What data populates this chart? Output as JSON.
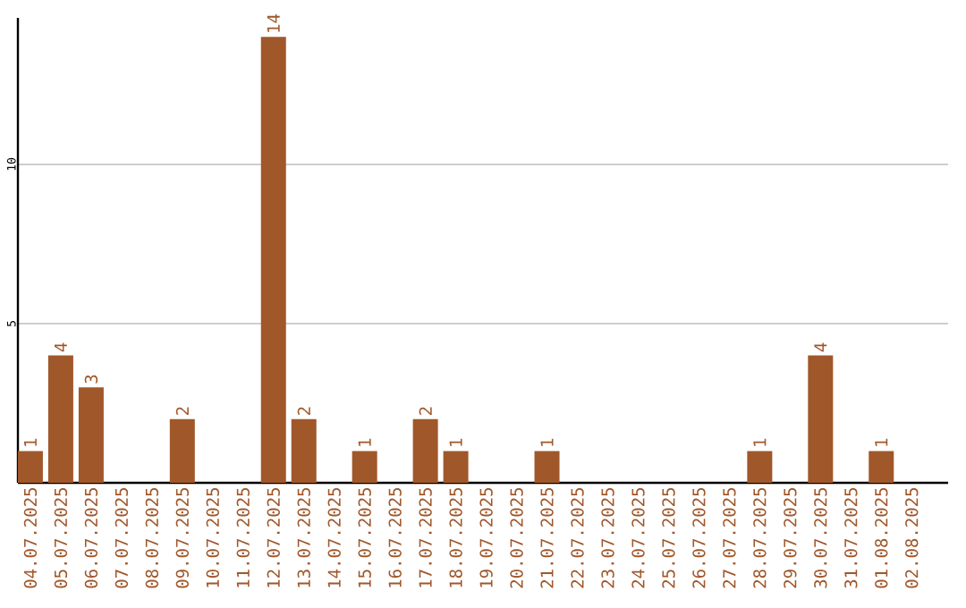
{
  "chart_data": {
    "type": "bar",
    "categories": [
      "04.07.2025",
      "05.07.2025",
      "06.07.2025",
      "07.07.2025",
      "08.07.2025",
      "09.07.2025",
      "10.07.2025",
      "11.07.2025",
      "12.07.2025",
      "13.07.2025",
      "14.07.2025",
      "15.07.2025",
      "16.07.2025",
      "17.07.2025",
      "18.07.2025",
      "19.07.2025",
      "20.07.2025",
      "21.07.2025",
      "22.07.2025",
      "23.07.2025",
      "24.07.2025",
      "25.07.2025",
      "26.07.2025",
      "27.07.2025",
      "28.07.2025",
      "29.07.2025",
      "30.07.2025",
      "31.07.2025",
      "01.08.2025",
      "02.08.2025"
    ],
    "values": [
      1,
      4,
      3,
      0,
      0,
      2,
      0,
      0,
      14,
      2,
      0,
      1,
      0,
      2,
      1,
      0,
      0,
      1,
      0,
      0,
      0,
      0,
      0,
      0,
      1,
      0,
      4,
      0,
      1,
      0
    ],
    "value_labels": [
      "1",
      "4",
      "3",
      null,
      null,
      "2",
      null,
      null,
      "14",
      "2",
      null,
      "1",
      null,
      "2",
      "1",
      null,
      null,
      "1",
      null,
      null,
      null,
      null,
      null,
      null,
      "1",
      null,
      "4",
      null,
      "1",
      null
    ],
    "color": "#a0572a",
    "ylim": [
      0,
      14.6
    ],
    "yticks": [
      5,
      10
    ],
    "grid": "y"
  }
}
